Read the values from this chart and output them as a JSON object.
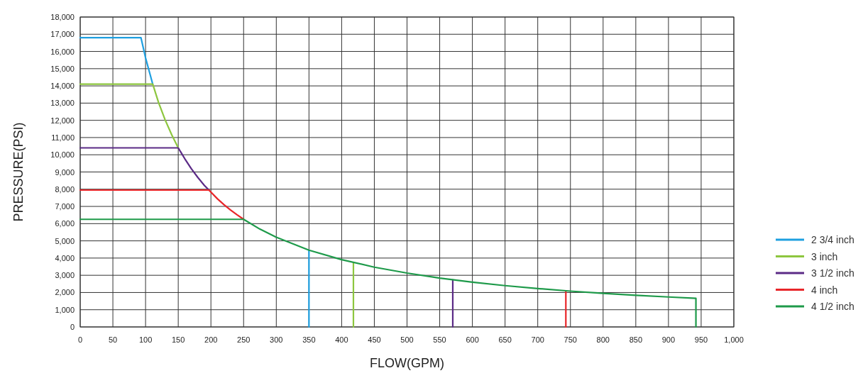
{
  "chart_data": {
    "type": "line",
    "xlabel": "FLOW(GPM)",
    "ylabel": "PRESSURE(PSI)",
    "xlim": [
      0,
      1000
    ],
    "ylim": [
      0,
      18000
    ],
    "xticks": [
      0,
      50,
      100,
      150,
      200,
      250,
      300,
      350,
      400,
      450,
      500,
      550,
      600,
      650,
      700,
      750,
      800,
      850,
      900,
      950,
      {
        "value": 1000,
        "label": "1,000"
      }
    ],
    "yticks": [
      0,
      {
        "value": 1000,
        "label": "1,000"
      },
      {
        "value": 2000,
        "label": "2,000"
      },
      {
        "value": 3000,
        "label": "3,000"
      },
      {
        "value": 4000,
        "label": "4,000"
      },
      {
        "value": 5000,
        "label": "5,000"
      },
      {
        "value": 6000,
        "label": "6,000"
      },
      {
        "value": 7000,
        "label": "7,000"
      },
      {
        "value": 8000,
        "label": "8,000"
      },
      {
        "value": 9000,
        "label": "9,000"
      },
      {
        "value": 10000,
        "label": "10,000"
      },
      {
        "value": 11000,
        "label": "11,000"
      },
      {
        "value": 12000,
        "label": "12,000"
      },
      {
        "value": 13000,
        "label": "13,000"
      },
      {
        "value": 14000,
        "label": "14,000"
      },
      {
        "value": 15000,
        "label": "15,000"
      },
      {
        "value": 16000,
        "label": "16,000"
      },
      {
        "value": 17000,
        "label": "17,000"
      },
      {
        "value": 18000,
        "label": "18,000"
      }
    ],
    "grid": true,
    "legend": "right",
    "marker": "none",
    "line_style": "solid",
    "series": [
      {
        "name": "2 3/4 inch",
        "color": "#1e9fe0",
        "x": [
          0,
          93,
          100,
          111,
          null,
          350,
          350
        ],
        "values": [
          16800,
          16800,
          15630,
          14100,
          null,
          4460,
          0
        ]
      },
      {
        "name": "3 inch",
        "color": "#8dc63f",
        "x": [
          0,
          111,
          120,
          130,
          140,
          150,
          null,
          418,
          418
        ],
        "values": [
          14100,
          14100,
          13020,
          12020,
          11160,
          10400,
          null,
          3740,
          0
        ]
      },
      {
        "name": "3 1/2 inch",
        "color": "#5b2a86",
        "x": [
          0,
          150,
          160,
          170,
          180,
          190,
          197,
          null,
          570,
          570
        ],
        "values": [
          10400,
          10400,
          9770,
          9190,
          8680,
          8220,
          7950,
          null,
          2740,
          0
        ]
      },
      {
        "name": "4 inch",
        "color": "#e8262a",
        "x": [
          0,
          197,
          210,
          220,
          230,
          240,
          250,
          null,
          743,
          743
        ],
        "values": [
          7950,
          7950,
          7440,
          7100,
          6790,
          6510,
          6250,
          null,
          2100,
          0
        ]
      },
      {
        "name": "4 1/2 inch",
        "color": "#1e9a4a",
        "x": [
          0,
          250,
          275,
          300,
          350,
          400,
          450,
          500,
          550,
          600,
          650,
          700,
          750,
          800,
          850,
          900,
          942,
          942
        ],
        "values": [
          6250,
          6250,
          5680,
          5210,
          4460,
          3910,
          3470,
          3130,
          2840,
          2600,
          2400,
          2230,
          2080,
          1950,
          1840,
          1740,
          1660,
          0
        ]
      }
    ]
  }
}
